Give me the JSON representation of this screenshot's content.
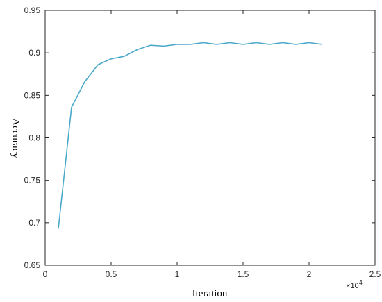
{
  "chart_data": {
    "type": "line",
    "xlabel": "Iteration",
    "ylabel": "Accuracy",
    "x_scale_label": "×",
    "x_scale_base": "10",
    "x_scale_exponent": "4",
    "xlim": [
      0,
      2.5
    ],
    "ylim": [
      0.65,
      0.95
    ],
    "xticks": [
      0,
      0.5,
      1,
      1.5,
      2,
      2.5
    ],
    "xtick_labels": [
      "0",
      "0.5",
      "1",
      "1.5",
      "2",
      "2.5"
    ],
    "yticks": [
      0.65,
      0.7,
      0.75,
      0.8,
      0.85,
      0.9,
      0.95
    ],
    "ytick_labels": [
      "0.65",
      "0.7",
      "0.75",
      "0.8",
      "0.85",
      "0.9",
      "0.95"
    ],
    "grid": false,
    "line_color": "#4aa8c8",
    "series": [
      {
        "x": [
          0.1,
          0.2,
          0.3,
          0.4,
          0.5,
          0.6,
          0.7,
          0.8,
          0.9,
          1.0,
          1.1,
          1.2,
          1.3,
          1.4,
          1.5,
          1.6,
          1.7,
          1.8,
          1.9,
          2.0,
          2.1
        ],
        "values": [
          0.693,
          0.836,
          0.866,
          0.886,
          0.893,
          0.896,
          0.904,
          0.909,
          0.908,
          0.91,
          0.91,
          0.912,
          0.91,
          0.912,
          0.91,
          0.912,
          0.91,
          0.912,
          0.91,
          0.912,
          0.91
        ]
      }
    ]
  }
}
